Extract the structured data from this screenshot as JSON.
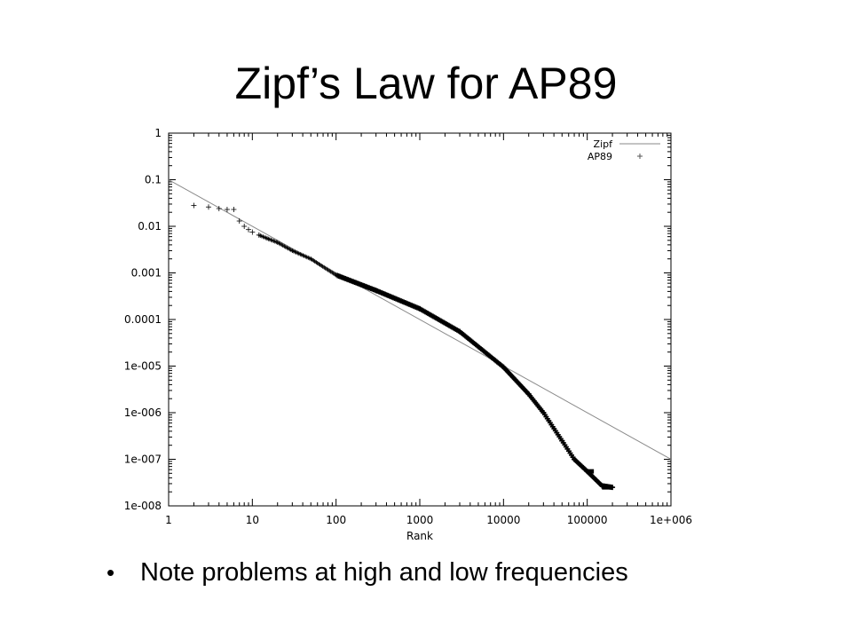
{
  "slide": {
    "title": "Zipf’s Law for AP89",
    "bullets": [
      "Note problems at high and low frequencies"
    ]
  },
  "colors": {
    "zipf_line": "#8a8a8a",
    "points": "#000000",
    "axes": "#000000"
  },
  "chart_data": {
    "type": "scatter",
    "title": "",
    "xlabel": "Rank",
    "ylabel": "",
    "x_scale": "log",
    "y_scale": "log",
    "xlim": [
      1,
      1000000
    ],
    "ylim": [
      1e-08,
      1
    ],
    "x_ticks": [
      "1",
      "10",
      "100",
      "1000",
      "10000",
      "100000",
      "1e+006"
    ],
    "y_ticks": [
      "1",
      "0.1",
      "0.01",
      "0.001",
      "0.0001",
      "1e-005",
      "1e-006",
      "1e-007",
      "1e-008"
    ],
    "legend_position": "top-right",
    "grid": false,
    "series": [
      {
        "name": "Zipf",
        "kind": "line",
        "x": [
          1,
          1000000
        ],
        "y": [
          0.1,
          1e-07
        ]
      },
      {
        "name": "AP89",
        "kind": "points",
        "x": [
          2,
          3,
          4,
          5,
          6,
          7,
          8,
          9,
          10,
          12,
          15,
          20,
          30,
          50,
          100,
          300,
          1000,
          3000,
          10000,
          20000,
          30000,
          50000,
          70000,
          100000,
          150000,
          200000
        ],
        "y": [
          0.028,
          0.026,
          0.024,
          0.023,
          0.023,
          0.013,
          0.01,
          0.0085,
          0.0075,
          0.0065,
          0.0055,
          0.0045,
          0.003,
          0.002,
          0.0009,
          0.00042,
          0.00017,
          5.5e-05,
          9.5e-06,
          2.5e-06,
          1e-06,
          2.5e-07,
          1e-07,
          5.5e-08,
          2.7e-08,
          2.5e-08
        ]
      }
    ]
  }
}
